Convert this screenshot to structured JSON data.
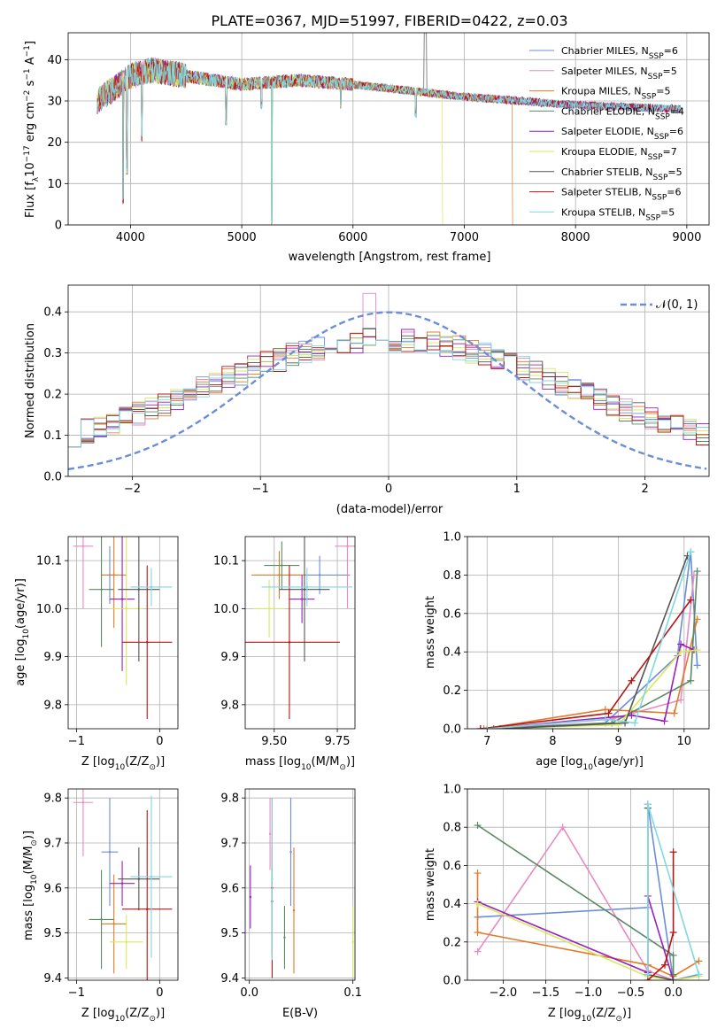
{
  "figure_title": "PLATE=0367, MJD=51997, FIBERID=0422, z=0.03",
  "colors": [
    "#6b8ed8",
    "#e88ac3",
    "#e07b28",
    "#5a8a62",
    "#9b1fbf",
    "#d8ea5a",
    "#555555",
    "#b81414",
    "#7ed8e0"
  ],
  "models": [
    {
      "label": "Chabrier MILES, N",
      "sub": "SSP",
      "n": "=6"
    },
    {
      "label": "Salpeter MILES, N",
      "sub": "SSP",
      "n": "=5"
    },
    {
      "label": "Kroupa MILES, N",
      "sub": "SSP",
      "n": "=5"
    },
    {
      "label": "Chabrier ELODIE, N",
      "sub": "SSP",
      "n": "=4"
    },
    {
      "label": "Salpeter ELODIE, N",
      "sub": "SSP",
      "n": "=6"
    },
    {
      "label": "Kroupa ELODIE, N",
      "sub": "SSP",
      "n": "=7"
    },
    {
      "label": "Chabrier STELIB, N",
      "sub": "SSP",
      "n": "=5"
    },
    {
      "label": "Salpeter STELIB, N",
      "sub": "SSP",
      "n": "=6"
    },
    {
      "label": "Kroupa STELIB, N",
      "sub": "SSP",
      "n": "=5"
    }
  ],
  "chart_data": [
    {
      "id": "spectrum",
      "type": "line",
      "xlabel": "wavelength [Angstrom, rest frame]",
      "ylabel": "Flux [f",
      "ylabel_sub": "λ",
      "ylabel_mid": "10",
      "ylabel_sup": "−17",
      "ylabel_tail": " erg cm",
      "ylabel_sup2": "−2",
      "ylabel_tail2": " s",
      "ylabel_sup3": "−1",
      "ylabel_tail3": " A",
      "ylabel_sup4": "−1",
      "ylabel_end": "]",
      "xlim": [
        3440,
        9200
      ],
      "ylim": [
        0,
        46.5
      ],
      "xticks": [
        4000,
        5000,
        6000,
        7000,
        8000,
        9000
      ],
      "yticks": [
        0,
        10,
        20,
        30,
        40
      ],
      "continuum": [
        [
          3700,
          30
        ],
        [
          3850,
          33
        ],
        [
          4000,
          36
        ],
        [
          4200,
          37.5
        ],
        [
          4500,
          36
        ],
        [
          5000,
          34
        ],
        [
          5500,
          35
        ],
        [
          6000,
          34
        ],
        [
          6500,
          32.5
        ],
        [
          7000,
          31
        ],
        [
          7500,
          30
        ],
        [
          8000,
          29
        ],
        [
          8500,
          28.5
        ],
        [
          8950,
          28
        ]
      ],
      "series_ranges": [
        [
          3700,
          8950
        ],
        [
          3700,
          8950
        ],
        [
          3700,
          7430
        ],
        [
          3700,
          8950
        ],
        [
          3700,
          8950
        ],
        [
          3700,
          6800
        ],
        [
          3700,
          8950
        ],
        [
          3700,
          8950
        ],
        [
          3700,
          8950
        ]
      ],
      "absorption": [
        [
          3934,
          5
        ],
        [
          3968,
          12
        ],
        [
          4102,
          20
        ],
        [
          4861,
          24
        ],
        [
          5175,
          28
        ],
        [
          5270,
          0
        ],
        [
          5890,
          28
        ],
        [
          6563,
          26
        ]
      ]
    },
    {
      "id": "residuals",
      "type": "histogram",
      "xlabel": "(data-model)/error",
      "ylabel": "Normed distribution",
      "xlim": [
        -2.5,
        2.5
      ],
      "ylim": [
        0,
        0.465
      ],
      "xticks": [
        -2,
        -1,
        0,
        1,
        2
      ],
      "xtick_labels": [
        "−2",
        "−1",
        "0",
        "1",
        "2"
      ],
      "yticks": [
        0.0,
        0.1,
        0.2,
        0.3,
        0.4
      ],
      "ytick_labels": [
        "0.0",
        "0.1",
        "0.2",
        "0.3",
        "0.4"
      ],
      "reference_label": "𝒩(0, 1)",
      "reference": {
        "mean": 0,
        "sigma": 1
      }
    },
    {
      "id": "age_vs_Z",
      "type": "errorbar",
      "xlabel": "Z [log",
      "xlabel_sub": "10",
      "xlabel_tail": "(Z/Z",
      "xlabel_sub2": "⊙",
      "xlabel_end": ")]",
      "ylabel": "age  [log",
      "ylabel_sub": "10",
      "ylabel_tail": "(age/yr)]",
      "xlim": [
        -1.1,
        0.22
      ],
      "ylim": [
        9.75,
        10.15
      ],
      "xticks": [
        -1,
        0
      ],
      "xtick_labels": [
        "−1",
        "0"
      ],
      "yticks": [
        9.8,
        9.9,
        10.0,
        10.1
      ],
      "ytick_labels": [
        "9.8",
        "9.9",
        "10.0",
        "10.1"
      ],
      "points": [
        {
          "x": -0.6,
          "y": 10.07,
          "xerr": 0.1,
          "yerr": 0.06
        },
        {
          "x": -0.92,
          "y": 10.13,
          "xerr": 0.12,
          "yerr": 0.13
        },
        {
          "x": -0.55,
          "y": 10.07,
          "xerr": 0.15,
          "yerr": 0.11
        },
        {
          "x": -0.7,
          "y": 10.04,
          "xerr": 0.15,
          "yerr": 0.12
        },
        {
          "x": -0.45,
          "y": 10.02,
          "xerr": 0.15,
          "yerr": 0.15
        },
        {
          "x": -0.4,
          "y": 10.0,
          "xerr": 0.2,
          "yerr": 0.16
        },
        {
          "x": -0.25,
          "y": 10.04,
          "xerr": 0.25,
          "yerr": 0.15
        },
        {
          "x": -0.15,
          "y": 9.93,
          "xerr": 0.3,
          "yerr": 0.16
        },
        {
          "x": -0.1,
          "y": 10.045,
          "xerr": 0.25,
          "yerr": 0.04
        }
      ]
    },
    {
      "id": "age_vs_mass",
      "type": "errorbar",
      "xlabel": "mass [log",
      "xlabel_sub": "10",
      "xlabel_tail": "(M/M",
      "xlabel_sub2": "⊙",
      "xlabel_end": ")]",
      "xlim": [
        9.385,
        9.82
      ],
      "ylim": [
        9.75,
        10.15
      ],
      "xticks": [
        9.5,
        9.75
      ],
      "xtick_labels": [
        "9.50",
        "9.75"
      ],
      "yticks": [
        9.8,
        9.9,
        10.0,
        10.1
      ],
      "ytick_labels": [
        "9.8",
        "9.9",
        "10.0",
        "10.1"
      ],
      "points": [
        {
          "x": 9.68,
          "y": 10.07,
          "xerr": 0.12,
          "yerr": 0.04
        },
        {
          "x": 9.79,
          "y": 10.13,
          "xerr": 0.05,
          "yerr": 0.13
        },
        {
          "x": 9.52,
          "y": 10.07,
          "xerr": 0.11,
          "yerr": 0.05
        },
        {
          "x": 9.53,
          "y": 10.09,
          "xerr": 0.07,
          "yerr": 0.05
        },
        {
          "x": 9.61,
          "y": 10.02,
          "xerr": 0.05,
          "yerr": 0.05
        },
        {
          "x": 9.48,
          "y": 10.0,
          "xerr": 0.06,
          "yerr": 0.06
        },
        {
          "x": 9.62,
          "y": 10.04,
          "xerr": 0.1,
          "yerr": 0.15
        },
        {
          "x": 9.56,
          "y": 9.93,
          "xerr": 0.2,
          "yerr": 0.16
        },
        {
          "x": 9.63,
          "y": 10.045,
          "xerr": 0.18,
          "yerr": 0.04
        }
      ]
    },
    {
      "id": "weight_vs_age",
      "type": "line",
      "xlabel": "age  [log",
      "xlabel_sub": "10",
      "xlabel_tail": "(age/yr)]",
      "ylabel": "mass weight",
      "xlim": [
        6.7,
        10.38
      ],
      "ylim": [
        0,
        1.0
      ],
      "xticks": [
        7,
        8,
        9,
        10
      ],
      "xtick_labels": [
        "7",
        "8",
        "9",
        "10"
      ],
      "yticks": [
        0.0,
        0.2,
        0.4,
        0.6,
        0.8,
        1.0
      ],
      "ytick_labels": [
        "0.0",
        "0.2",
        "0.4",
        "0.6",
        "0.8",
        "1.0"
      ],
      "series": [
        {
          "x": [
            6.9,
            8.8,
            9.9,
            10.1,
            10.2
          ],
          "y": [
            0.0,
            0.03,
            0.38,
            0.92,
            0.33
          ]
        },
        {
          "x": [
            7.0,
            8.9,
            9.95,
            10.15
          ],
          "y": [
            0.0,
            0.05,
            0.15,
            0.8
          ]
        },
        {
          "x": [
            6.95,
            8.8,
            9.85,
            10.2
          ],
          "y": [
            0.0,
            0.1,
            0.08,
            0.57
          ]
        },
        {
          "x": [
            7.1,
            8.9,
            10.1,
            10.2
          ],
          "y": [
            0.0,
            0.03,
            0.25,
            0.82
          ]
        },
        {
          "x": [
            7.0,
            9.2,
            9.7,
            9.95,
            10.15
          ],
          "y": [
            0.0,
            0.07,
            0.04,
            0.44,
            0.41
          ]
        },
        {
          "x": [
            7.0,
            9.0,
            9.95,
            10.2
          ],
          "y": [
            0.0,
            0.02,
            0.4,
            0.41
          ]
        },
        {
          "x": [
            7.2,
            9.1,
            10.05
          ],
          "y": [
            0.0,
            0.03,
            0.9
          ]
        },
        {
          "x": [
            6.9,
            8.85,
            9.2,
            10.1
          ],
          "y": [
            0.0,
            0.08,
            0.25,
            0.67
          ]
        },
        {
          "x": [
            7.0,
            8.8,
            9.25,
            10.1
          ],
          "y": [
            0.0,
            0.05,
            0.03,
            0.92
          ]
        }
      ]
    },
    {
      "id": "mass_vs_Z",
      "type": "errorbar",
      "xlabel": "Z [log",
      "xlabel_sub": "10",
      "xlabel_tail": "(Z/Z",
      "xlabel_sub2": "⊙",
      "xlabel_end": ")]",
      "ylabel": "mass [log",
      "ylabel_sub": "10",
      "ylabel_tail": "(M/M",
      "ylabel_sub2": "⊙",
      "ylabel_end": ")]",
      "xlim": [
        -1.1,
        0.22
      ],
      "ylim": [
        9.395,
        9.82
      ],
      "xticks": [
        -1,
        0
      ],
      "xtick_labels": [
        "−1",
        "0"
      ],
      "yticks": [
        9.4,
        9.5,
        9.6,
        9.7,
        9.8
      ],
      "ytick_labels": [
        "9.4",
        "9.5",
        "9.6",
        "9.7",
        "9.8"
      ],
      "points": [
        {
          "x": -0.6,
          "y": 9.68,
          "xerr": 0.1,
          "yerr": 0.12
        },
        {
          "x": -0.92,
          "y": 9.79,
          "xerr": 0.12,
          "yerr": 0.12
        },
        {
          "x": -0.55,
          "y": 9.52,
          "xerr": 0.15,
          "yerr": 0.11
        },
        {
          "x": -0.7,
          "y": 9.53,
          "xerr": 0.15,
          "yerr": 0.11
        },
        {
          "x": -0.45,
          "y": 9.61,
          "xerr": 0.15,
          "yerr": 0.05
        },
        {
          "x": -0.4,
          "y": 9.48,
          "xerr": 0.2,
          "yerr": 0.06
        },
        {
          "x": -0.25,
          "y": 9.62,
          "xerr": 0.25,
          "yerr": 0.07
        },
        {
          "x": -0.15,
          "y": 9.553,
          "xerr": 0.3,
          "yerr": 0.22
        },
        {
          "x": -0.1,
          "y": 9.625,
          "xerr": 0.25,
          "yerr": 0.18
        }
      ]
    },
    {
      "id": "mass_vs_EBV",
      "type": "errorbar",
      "xlabel": "E(B-V)",
      "xlim": [
        -0.004,
        0.102
      ],
      "ylim": [
        9.395,
        9.82
      ],
      "xticks": [
        0.0,
        0.1
      ],
      "xtick_labels": [
        "0.0",
        "0.1"
      ],
      "yticks": [
        9.4,
        9.5,
        9.6,
        9.7,
        9.8
      ],
      "ytick_labels": [
        "9.4",
        "9.5",
        "9.6",
        "9.7",
        "9.8"
      ],
      "points": [
        {
          "x": 0.04,
          "y": 9.68,
          "xerr": 0.0,
          "yerr": 0.12
        },
        {
          "x": 0.02,
          "y": 9.72,
          "xerr": 0.0,
          "yerr": 0.08
        },
        {
          "x": 0.043,
          "y": 9.55,
          "xerr": 0.0,
          "yerr": 0.14
        },
        {
          "x": 0.034,
          "y": 9.49,
          "xerr": 0.0,
          "yerr": 0.07
        },
        {
          "x": 0.001,
          "y": 9.58,
          "xerr": 0.0,
          "yerr": 0.07
        },
        {
          "x": 0.1,
          "y": 9.48,
          "xerr": 0.0,
          "yerr": 0.08
        },
        {
          "x": 0.022,
          "y": 9.57,
          "xerr": 0.0,
          "yerr": 0.12
        },
        {
          "x": 0.022,
          "y": 9.6,
          "xerr": 0.0,
          "yerr": 0.2
        },
        {
          "x": 0.022,
          "y": 9.62,
          "xerr": 0.0,
          "yerr": 0.18
        }
      ]
    },
    {
      "id": "weight_vs_Z",
      "type": "line",
      "xlabel": "Z [log",
      "xlabel_sub": "10",
      "xlabel_tail": "(Z/Z",
      "xlabel_sub2": "⊙",
      "xlabel_end": ")]",
      "ylabel": "mass weight",
      "xlim": [
        -2.42,
        0.42
      ],
      "ylim": [
        0,
        1.0
      ],
      "xticks": [
        -2.0,
        -1.5,
        -1.0,
        -0.5,
        0.0
      ],
      "xtick_labels": [
        "−2.0",
        "−1.5",
        "−1.0",
        "−0.5",
        "0.0"
      ],
      "yticks": [
        0.0,
        0.2,
        0.4,
        0.6,
        0.8,
        1.0
      ],
      "ytick_labels": [
        "0.0",
        "0.2",
        "0.4",
        "0.6",
        "0.8",
        "1.0"
      ],
      "series": [
        {
          "x": [
            -2.3,
            -0.3,
            -0.3,
            0.0,
            0.3
          ],
          "y": [
            0.33,
            0.38,
            0.92,
            0.0,
            0.03
          ]
        },
        {
          "x": [
            -2.3,
            -1.3,
            -0.3,
            0.0
          ],
          "y": [
            0.15,
            0.8,
            0.05,
            0.0
          ]
        },
        {
          "x": [
            -2.3,
            -2.3,
            -0.3,
            0.0,
            0.3
          ],
          "y": [
            0.56,
            0.25,
            0.08,
            0.02,
            0.1
          ]
        },
        {
          "x": [
            -2.3,
            0.0,
            0.0
          ],
          "y": [
            0.81,
            0.13,
            0.03
          ]
        },
        {
          "x": [
            -2.3,
            -0.3,
            -0.3,
            0.0
          ],
          "y": [
            0.41,
            0.04,
            0.44,
            0.0
          ]
        },
        {
          "x": [
            -2.3,
            -0.3,
            0.0,
            0.3
          ],
          "y": [
            0.4,
            0.02,
            0.0,
            0.02
          ]
        },
        {
          "x": [
            -0.3,
            -0.3,
            0.0
          ],
          "y": [
            0.9,
            0.03,
            0.0
          ]
        },
        {
          "x": [
            -0.3,
            -0.1,
            0.0,
            0.0
          ],
          "y": [
            0.0,
            0.08,
            0.25,
            0.67
          ]
        },
        {
          "x": [
            -0.3,
            -0.3,
            0.3
          ],
          "y": [
            0.03,
            0.92,
            0.03
          ]
        }
      ]
    }
  ]
}
